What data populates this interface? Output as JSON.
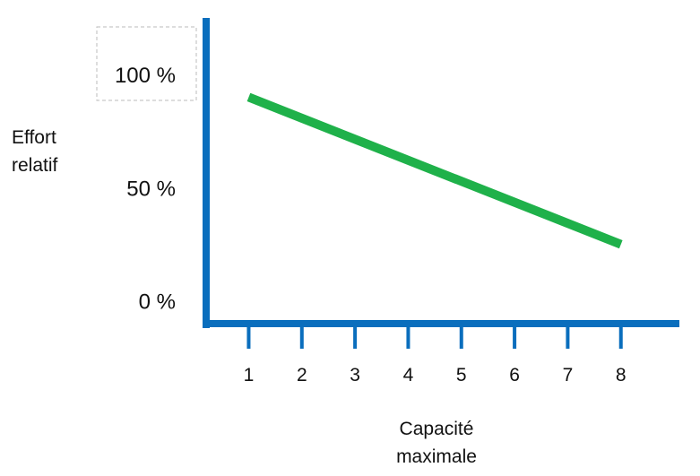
{
  "chart_data": {
    "type": "line",
    "title": "",
    "ylabel_lines": [
      "Effort",
      "relatif"
    ],
    "xlabel_lines": [
      "Capacité",
      "maximale"
    ],
    "y_ticks": [
      "0 %",
      "50 %",
      "100 %"
    ],
    "y_tick_values": [
      0,
      50,
      100
    ],
    "x_ticks": [
      "1",
      "2",
      "3",
      "4",
      "5",
      "6",
      "7",
      "8"
    ],
    "x_tick_values": [
      1,
      2,
      3,
      4,
      5,
      6,
      7,
      8
    ],
    "xlim": [
      0.2,
      9.1
    ],
    "ylim": [
      -10,
      125
    ],
    "grid": false,
    "legend": "none",
    "series": [
      {
        "x": [
          1,
          8
        ],
        "y": [
          90,
          25
        ]
      }
    ],
    "colors": {
      "axis": "#0a6ebd",
      "line": "#1fb14a",
      "highlight_box": "#bbbbbb"
    }
  }
}
